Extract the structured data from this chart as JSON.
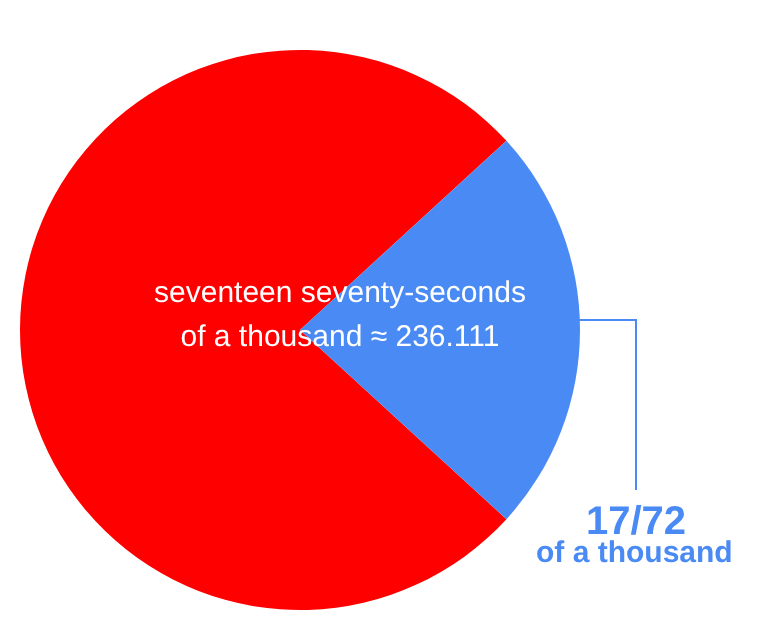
{
  "chart_data": {
    "type": "pie",
    "categories": [
      null,
      "17/72"
    ],
    "values": [
      76.389,
      23.611
    ],
    "colors": [
      "#ff0000",
      "#4a8af4"
    ],
    "annotations": [
      "seventeen seventy-seconds of a thousand ≈ 236.111",
      "of a thousand"
    ]
  }
}
